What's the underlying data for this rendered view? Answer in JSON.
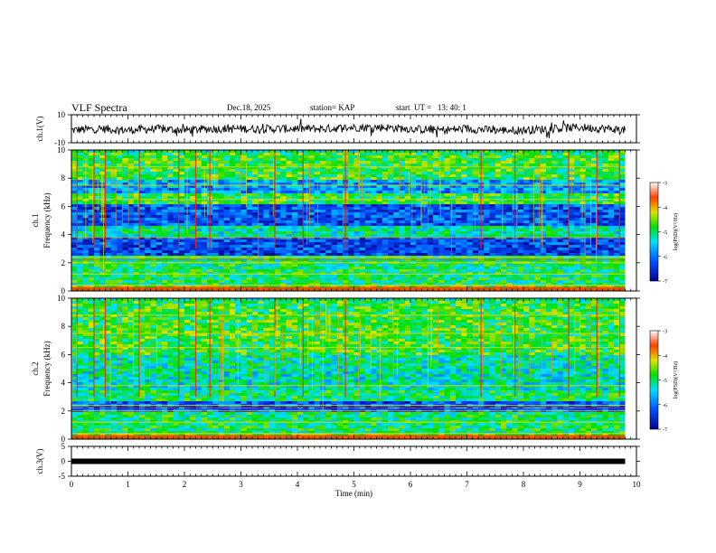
{
  "header": {
    "title": "VLF Spectra",
    "date": "Dec.18, 2025",
    "station": "station= KAP",
    "start": "start  UT =   13: 40: 1"
  },
  "chart_data": [
    {
      "type": "line",
      "panel": "ch1-waveform",
      "ylabel": "ch.1(V)",
      "ylim": [
        -10,
        10
      ],
      "yticks": [
        "10",
        "-10"
      ],
      "x": [
        0,
        0.5,
        1,
        1.5,
        2,
        2.5,
        3,
        3.5,
        4,
        4.5,
        5,
        5.5,
        6,
        6.5,
        7,
        7.5,
        8,
        8.5,
        9,
        9.5,
        9.8
      ],
      "values": [
        -1,
        0,
        -1,
        0,
        -1,
        0,
        0,
        0,
        0,
        0,
        1,
        1,
        0,
        -1,
        0,
        -1,
        -1,
        0,
        1,
        0,
        -1
      ]
    },
    {
      "type": "heatmap",
      "panel": "ch1-spectrogram",
      "ylabel": "ch.1",
      "ylabel2": "Frequency (kHz)",
      "ylim": [
        0,
        10
      ],
      "yticks": [
        "0",
        "2",
        "4",
        "6",
        "8",
        "10"
      ],
      "xlim": [
        0,
        9.8
      ],
      "colorbar": {
        "label": "log(PSD)(V²/Hz)",
        "range": [
          -7,
          -3
        ],
        "ticks": [
          "-3",
          "-4",
          "-5",
          "-6",
          "-7"
        ]
      },
      "bands_khz": [
        [
          0,
          0.4,
          -4.5
        ],
        [
          0.4,
          2,
          -5.0
        ],
        [
          2,
          2.6,
          -5.0
        ],
        [
          2.6,
          4,
          -6.3
        ],
        [
          4,
          4.8,
          -5.2
        ],
        [
          4.8,
          6.2,
          -6.2
        ],
        [
          6.2,
          7,
          -4.8
        ],
        [
          7,
          8,
          -5.8
        ],
        [
          8,
          10,
          -4.8
        ]
      ],
      "bursts_min": [
        0.1,
        0.4,
        0.6,
        1.2,
        1.9,
        2.2,
        2.45,
        3.6,
        4.1,
        4.85,
        7.25,
        7.85,
        8.8,
        9.3,
        9.7
      ]
    },
    {
      "type": "heatmap",
      "panel": "ch2-spectrogram",
      "ylabel": "ch.2",
      "ylabel2": "Frequency (kHz)",
      "ylim": [
        0,
        10
      ],
      "yticks": [
        "0",
        "2",
        "4",
        "6",
        "8",
        "10"
      ],
      "xlim": [
        0,
        9.8
      ],
      "colorbar": {
        "label": "log(PSD)(V²/Hz)",
        "range": [
          -7,
          -3
        ],
        "ticks": [
          "-3",
          "-4",
          "-5",
          "-6",
          "-7"
        ]
      },
      "bands_khz": [
        [
          0,
          0.4,
          -4.5
        ],
        [
          0.4,
          2,
          -5.0
        ],
        [
          2,
          2.8,
          -6.2
        ],
        [
          2.8,
          3.6,
          -5.0
        ],
        [
          3.6,
          5,
          -5.3
        ],
        [
          5,
          6,
          -5.2
        ],
        [
          6,
          10,
          -4.8
        ]
      ],
      "bursts_min": [
        0.1,
        0.4,
        0.6,
        1.2,
        1.9,
        2.2,
        2.45,
        3.6,
        4.1,
        4.85,
        7.25,
        7.85,
        8.8,
        9.3,
        9.7
      ]
    },
    {
      "type": "line",
      "panel": "ch3-signal",
      "ylabel": "ch.3(V)",
      "ylim": [
        -5,
        5
      ],
      "yticks": [
        "5",
        "0",
        "-5"
      ],
      "x": [
        0,
        9.8
      ],
      "values": [
        0,
        0
      ],
      "xlabel": "Time (min)",
      "xlim": [
        0,
        10
      ],
      "xticks": [
        "0",
        "1",
        "2",
        "3",
        "4",
        "5",
        "6",
        "7",
        "8",
        "9",
        "10"
      ]
    }
  ],
  "colors": {
    "axis": "#000000",
    "background": "#ffffff"
  }
}
